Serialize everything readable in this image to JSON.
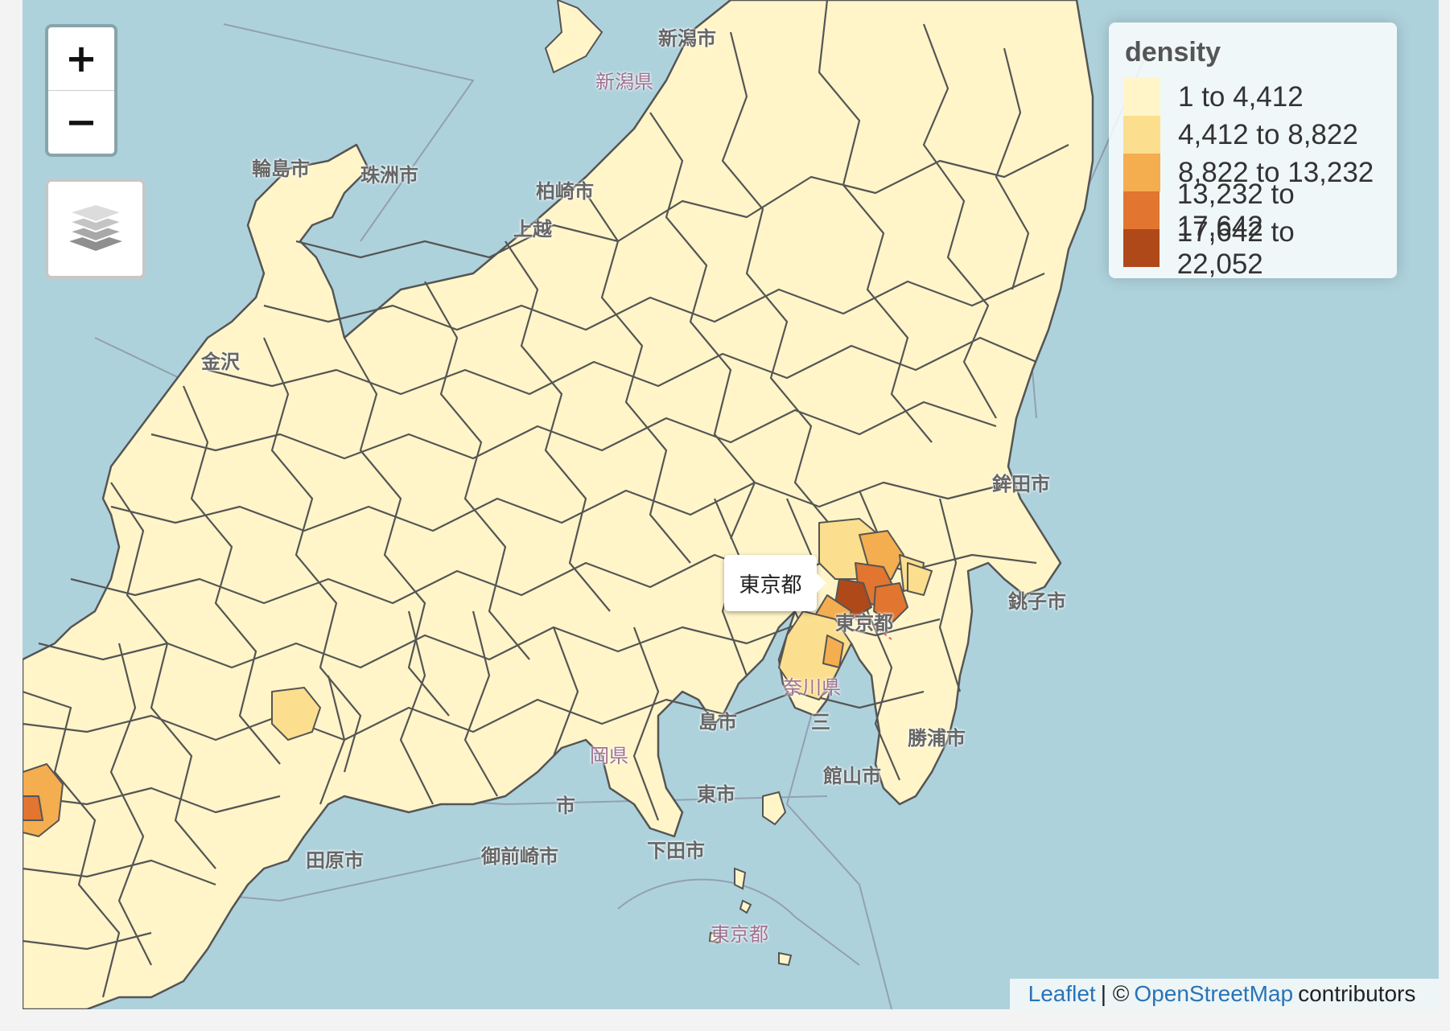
{
  "zoom": {
    "in_label": "+",
    "out_label": "−"
  },
  "legend": {
    "title": "density",
    "items": [
      {
        "label": "1 to 4,412",
        "color": "#fff5c8"
      },
      {
        "label": "4,412 to 8,822",
        "color": "#fbdf8e"
      },
      {
        "label": "8,822 to 13,232",
        "color": "#f4ad4f"
      },
      {
        "label": "13,232 to 17,642",
        "color": "#e27530"
      },
      {
        "label": "17,642 to 22,052",
        "color": "#b0491a"
      }
    ]
  },
  "tooltip": {
    "text": "東京都"
  },
  "attribution": {
    "leaflet": "Leaflet",
    "separator": "| ©",
    "osm": "OpenStreetMap",
    "suffix": "contributors"
  },
  "map_labels": [
    {
      "id": "niigata-city",
      "text": "新潟市"
    },
    {
      "id": "niigata-pref",
      "text": "新潟県"
    },
    {
      "id": "wajima",
      "text": "輪島市"
    },
    {
      "id": "suzu",
      "text": "珠洲市"
    },
    {
      "id": "kashiwazaki",
      "text": "柏崎市"
    },
    {
      "id": "joetsu",
      "text": "上越"
    },
    {
      "id": "kane",
      "text": "金沢"
    },
    {
      "id": "hokota",
      "text": "鉾田市"
    },
    {
      "id": "choshi",
      "text": "銚子市"
    },
    {
      "id": "katsuura",
      "text": "勝浦市"
    },
    {
      "id": "tateyama",
      "text": "館山市"
    },
    {
      "id": "tahara",
      "text": "田原市"
    },
    {
      "id": "omaezaki",
      "text": "御前崎市"
    },
    {
      "id": "shimoda",
      "text": "下田市"
    },
    {
      "id": "tokyo-to",
      "text": "東京都"
    },
    {
      "id": "tokyo-island",
      "text": "東京都"
    },
    {
      "id": "shizuoka-pref",
      "text": "岡県"
    },
    {
      "id": "kanagawa",
      "text": "奈川県"
    },
    {
      "id": "miura",
      "text": "三"
    },
    {
      "id": "ito",
      "text": "島市"
    },
    {
      "id": "hiratsuka",
      "text": "東市"
    },
    {
      "id": "fuji",
      "text": "市"
    }
  ],
  "colors": {
    "sea": "#aed2dc",
    "land_light": "#fff5c8",
    "border": "#555555",
    "pref_border": "#8a94a8"
  },
  "icons": {
    "layers": "layers-icon"
  }
}
